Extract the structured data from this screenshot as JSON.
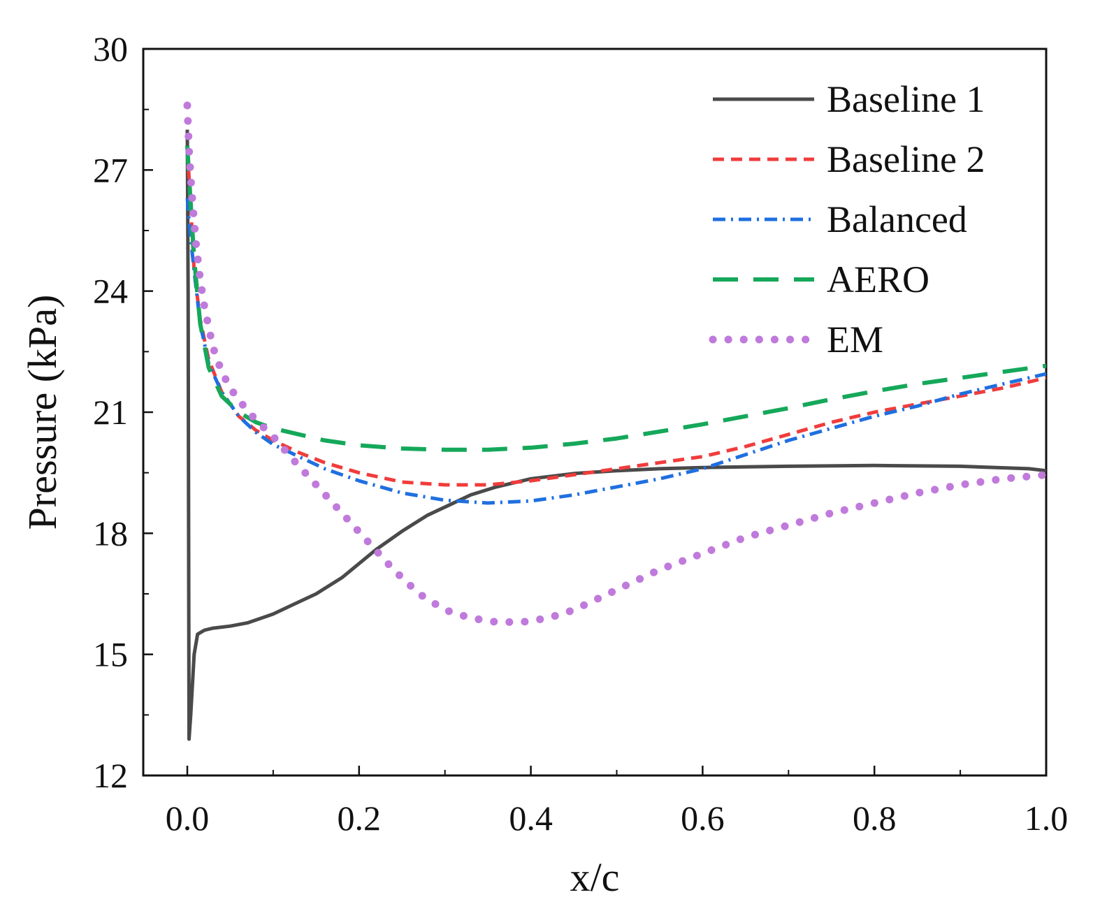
{
  "chart_data": {
    "type": "line",
    "title": "",
    "xlabel": "x/c",
    "ylabel": "Pressure (kPa)",
    "xlim": [
      -0.05,
      1.0
    ],
    "ylim": [
      12,
      30
    ],
    "xticks": [
      0.0,
      0.2,
      0.4,
      0.6,
      0.8,
      1.0
    ],
    "xtick_labels": [
      "0.0",
      "0.2",
      "0.4",
      "0.6",
      "0.8",
      "1.0"
    ],
    "yticks": [
      12,
      15,
      18,
      21,
      24,
      27,
      30
    ],
    "ytick_labels": [
      "12",
      "15",
      "18",
      "21",
      "24",
      "27",
      "30"
    ],
    "grid": false,
    "legend_position": "top-right",
    "series": [
      {
        "name": "Baseline 1",
        "color": "#4a4a4a",
        "style": "solid",
        "x": [
          0.0,
          0.001,
          0.002,
          0.004,
          0.008,
          0.012,
          0.02,
          0.03,
          0.05,
          0.07,
          0.1,
          0.12,
          0.15,
          0.18,
          0.2,
          0.22,
          0.25,
          0.28,
          0.3,
          0.33,
          0.36,
          0.4,
          0.45,
          0.5,
          0.55,
          0.6,
          0.7,
          0.8,
          0.9,
          0.98,
          1.0
        ],
        "y": [
          28.0,
          24.0,
          12.9,
          13.5,
          15.0,
          15.5,
          15.6,
          15.65,
          15.7,
          15.78,
          16.0,
          16.2,
          16.5,
          16.9,
          17.25,
          17.6,
          18.05,
          18.45,
          18.65,
          18.95,
          19.15,
          19.35,
          19.48,
          19.55,
          19.6,
          19.63,
          19.66,
          19.68,
          19.66,
          19.6,
          19.55
        ]
      },
      {
        "name": "Baseline 2",
        "color": "#f03c3c",
        "style": "dashed",
        "x": [
          0.0,
          0.003,
          0.008,
          0.015,
          0.025,
          0.04,
          0.06,
          0.08,
          0.1,
          0.13,
          0.16,
          0.2,
          0.25,
          0.3,
          0.35,
          0.4,
          0.45,
          0.5,
          0.55,
          0.6,
          0.65,
          0.7,
          0.75,
          0.8,
          0.85,
          0.9,
          0.95,
          1.0
        ],
        "y": [
          27.5,
          26.5,
          24.5,
          23.3,
          22.3,
          21.5,
          20.9,
          20.55,
          20.3,
          20.0,
          19.75,
          19.5,
          19.27,
          19.2,
          19.2,
          19.3,
          19.45,
          19.6,
          19.75,
          19.9,
          20.15,
          20.45,
          20.75,
          21.0,
          21.2,
          21.4,
          21.6,
          21.85
        ]
      },
      {
        "name": "Balanced",
        "color": "#1f6fe0",
        "style": "dash-dot",
        "x": [
          0.0,
          0.003,
          0.008,
          0.015,
          0.025,
          0.04,
          0.06,
          0.08,
          0.1,
          0.13,
          0.16,
          0.2,
          0.25,
          0.3,
          0.35,
          0.4,
          0.45,
          0.5,
          0.55,
          0.6,
          0.65,
          0.7,
          0.75,
          0.8,
          0.85,
          0.9,
          0.95,
          1.0
        ],
        "y": [
          26.3,
          25.5,
          24.5,
          23.2,
          22.2,
          21.5,
          20.9,
          20.5,
          20.2,
          19.9,
          19.6,
          19.3,
          19.0,
          18.82,
          18.75,
          18.8,
          18.95,
          19.15,
          19.35,
          19.6,
          19.95,
          20.3,
          20.6,
          20.9,
          21.15,
          21.45,
          21.7,
          21.95
        ]
      },
      {
        "name": "AERO",
        "color": "#15a85a",
        "style": "long-dash",
        "x": [
          0.0,
          0.003,
          0.008,
          0.015,
          0.025,
          0.04,
          0.06,
          0.08,
          0.1,
          0.13,
          0.16,
          0.2,
          0.25,
          0.3,
          0.35,
          0.4,
          0.45,
          0.5,
          0.55,
          0.6,
          0.65,
          0.7,
          0.75,
          0.8,
          0.85,
          0.9,
          0.95,
          1.0
        ],
        "y": [
          27.6,
          26.5,
          24.8,
          23.2,
          22.1,
          21.4,
          21.0,
          20.75,
          20.6,
          20.45,
          20.3,
          20.18,
          20.1,
          20.07,
          20.07,
          20.12,
          20.22,
          20.35,
          20.52,
          20.7,
          20.9,
          21.1,
          21.32,
          21.52,
          21.7,
          21.85,
          22.0,
          22.15
        ]
      },
      {
        "name": "EM",
        "color": "#c07adb",
        "style": "dotted",
        "x": [
          0.0,
          0.002,
          0.005,
          0.01,
          0.015,
          0.02,
          0.03,
          0.04,
          0.05,
          0.06,
          0.08,
          0.1,
          0.12,
          0.15,
          0.18,
          0.21,
          0.24,
          0.27,
          0.3,
          0.33,
          0.36,
          0.39,
          0.42,
          0.45,
          0.48,
          0.51,
          0.55,
          0.6,
          0.65,
          0.7,
          0.75,
          0.8,
          0.85,
          0.9,
          0.95,
          1.0
        ],
        "y": [
          28.6,
          27.5,
          26.5,
          25.2,
          24.3,
          23.6,
          22.6,
          22.0,
          21.6,
          21.3,
          20.8,
          20.4,
          19.9,
          19.2,
          18.5,
          17.8,
          17.1,
          16.5,
          16.1,
          15.9,
          15.8,
          15.8,
          15.9,
          16.1,
          16.4,
          16.7,
          17.1,
          17.5,
          17.9,
          18.2,
          18.5,
          18.75,
          19.0,
          19.2,
          19.35,
          19.45
        ]
      }
    ]
  }
}
